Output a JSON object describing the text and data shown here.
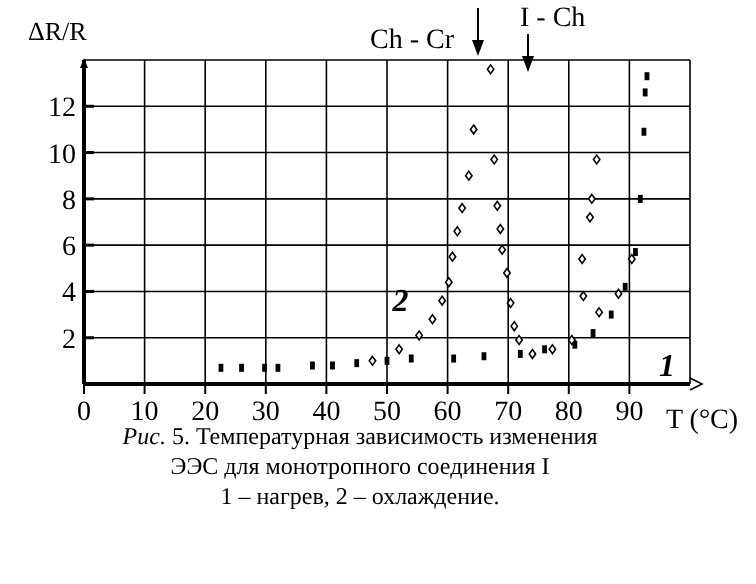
{
  "chart_data": {
    "type": "scatter",
    "ylabel": "ΔR/R",
    "xlabel": "T (°C)",
    "xlim": [
      0,
      100
    ],
    "ylim": [
      0,
      14
    ],
    "xticks": [
      0,
      10,
      20,
      30,
      40,
      50,
      60,
      70,
      80,
      90
    ],
    "yticks": [
      2,
      4,
      6,
      8,
      10,
      12
    ],
    "grid": true,
    "series": [
      {
        "name": "1",
        "color": "#000000",
        "marker": "square",
        "x": [
          22.6,
          26,
          29.8,
          32,
          37.7,
          41,
          45,
          50,
          54,
          61,
          66,
          72,
          76,
          81,
          84,
          87,
          89.3,
          91,
          91.8,
          92.4,
          92.6,
          92.9
        ],
        "values": [
          0.7,
          0.7,
          0.7,
          0.7,
          0.8,
          0.8,
          0.9,
          1.0,
          1.1,
          1.1,
          1.2,
          1.3,
          1.5,
          1.7,
          2.2,
          3.0,
          4.2,
          5.7,
          8,
          10.9,
          12.6,
          13.3
        ]
      },
      {
        "name": "2",
        "color": "#000000",
        "marker": "diamond",
        "x": [
          47.6,
          52,
          55.3,
          57.5,
          59.1,
          60.2,
          60.8,
          61.6,
          62.4,
          63.5,
          64.3,
          67.1,
          67.7,
          68.2,
          68.7,
          69,
          69.8,
          70.4,
          71,
          71.8,
          74,
          77.3,
          80.5,
          82.4,
          82.2,
          83.5,
          83.8,
          84.6,
          85,
          88.2,
          90.4
        ],
        "values": [
          1.0,
          1.5,
          2.1,
          2.8,
          3.6,
          4.4,
          5.5,
          6.6,
          7.6,
          9.0,
          11,
          13.6,
          9.7,
          7.7,
          6.7,
          5.8,
          4.8,
          3.5,
          2.5,
          1.9,
          1.3,
          1.5,
          1.9,
          3.8,
          5.4,
          7.2,
          8,
          9.7,
          3.1,
          3.9,
          5.4
        ]
      }
    ],
    "annotations": [
      "Ch - Cr",
      "I - Ch",
      "Рис. 5. Температурная  зависимость изменения",
      "ЭЭС для монотропного  соединения I",
      "1 – нагрев, 2  – охлаждение."
    ]
  }
}
